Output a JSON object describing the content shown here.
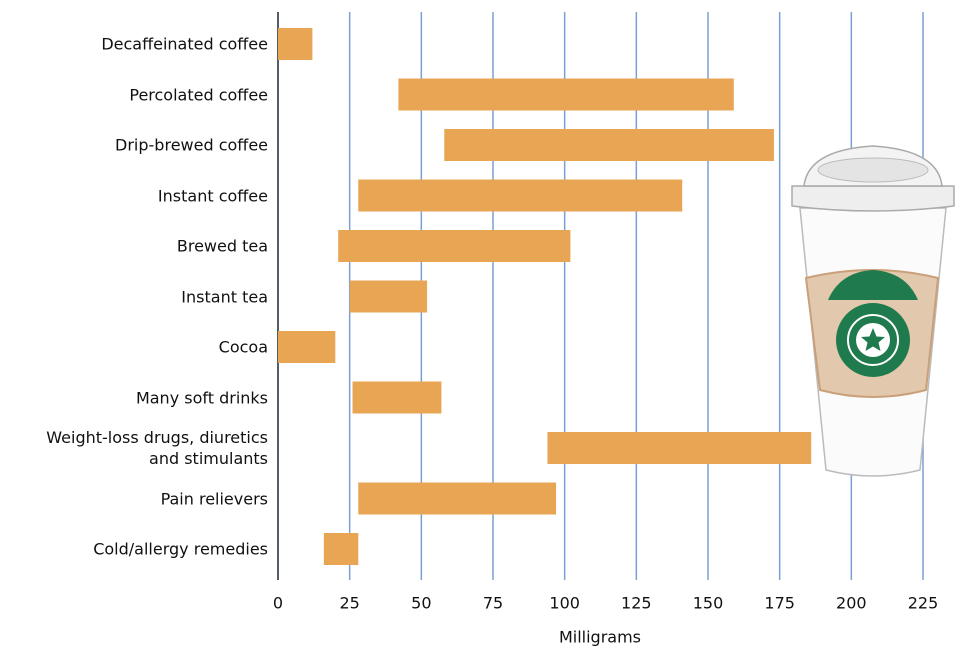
{
  "chart_data": {
    "type": "range-bar",
    "x_label": "Milligrams",
    "categories": [
      "Decaffeinated coffee",
      "Percolated coffee",
      "Drip-brewed coffee",
      "Instant coffee",
      "Brewed tea",
      "Instant tea",
      "Cocoa",
      "Many soft drinks",
      "Weight-loss drugs, diuretics\nand stimulants",
      "Pain relievers",
      "Cold/allergy remedies"
    ],
    "low": [
      0,
      42,
      58,
      28,
      21,
      25,
      0,
      26,
      94,
      28,
      16
    ],
    "high": [
      12,
      159,
      173,
      141,
      102,
      52,
      20,
      57,
      186,
      97,
      28
    ],
    "color": "#e8a553",
    "xlim": [
      0,
      225
    ],
    "xticks": [
      0,
      25,
      50,
      75,
      100,
      125,
      150,
      175,
      200,
      225
    ],
    "grid": true,
    "grid_color": "#7b9fd4"
  }
}
